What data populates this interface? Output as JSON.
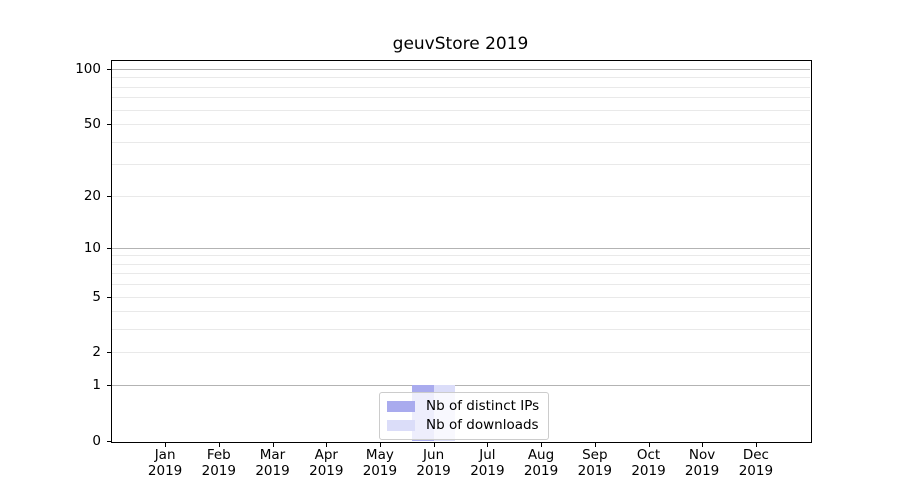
{
  "title": "geuvStore 2019",
  "chart_data": {
    "type": "bar",
    "title": "geuvStore 2019",
    "categories": [
      "Jan 2019",
      "Feb 2019",
      "Mar 2019",
      "Apr 2019",
      "May 2019",
      "Jun 2019",
      "Jul 2019",
      "Aug 2019",
      "Sep 2019",
      "Oct 2019",
      "Nov 2019",
      "Dec 2019"
    ],
    "series": [
      {
        "name": "Nb of distinct IPs",
        "color": "#a9abee",
        "values": [
          0,
          0,
          0,
          0,
          0,
          1,
          0,
          0,
          0,
          0,
          0,
          0
        ]
      },
      {
        "name": "Nb of downloads",
        "color": "#dbddf9",
        "values": [
          0,
          0,
          0,
          0,
          0,
          1,
          0,
          0,
          0,
          0,
          0,
          0
        ]
      }
    ],
    "xlabel": "",
    "ylabel": "",
    "y_scale": "log1p",
    "ylim": [
      0,
      112
    ],
    "y_ticks": [
      {
        "value": 0,
        "label": "0"
      },
      {
        "value": 1,
        "label": "1"
      },
      {
        "value": 2,
        "label": "2"
      },
      {
        "value": 5,
        "label": "5"
      },
      {
        "value": 10,
        "label": "10"
      },
      {
        "value": 20,
        "label": "20"
      },
      {
        "value": 50,
        "label": "50"
      },
      {
        "value": 100,
        "label": "100"
      }
    ],
    "y_major_gridlines": [
      1,
      10,
      100
    ],
    "y_minor_gridlines": [
      2,
      3,
      4,
      5,
      6,
      7,
      8,
      9,
      20,
      30,
      40,
      50,
      60,
      70,
      80,
      90
    ],
    "grid": true,
    "legend": {
      "position": "lower center",
      "entries": [
        "Nb of distinct IPs",
        "Nb of downloads"
      ]
    }
  },
  "colors": {
    "background": "#ffffff",
    "spine": "#000000",
    "major_grid": "#b3b3b3",
    "minor_grid": "#e9e9e9",
    "legend_border": "#cccccc",
    "text": "#000000"
  }
}
